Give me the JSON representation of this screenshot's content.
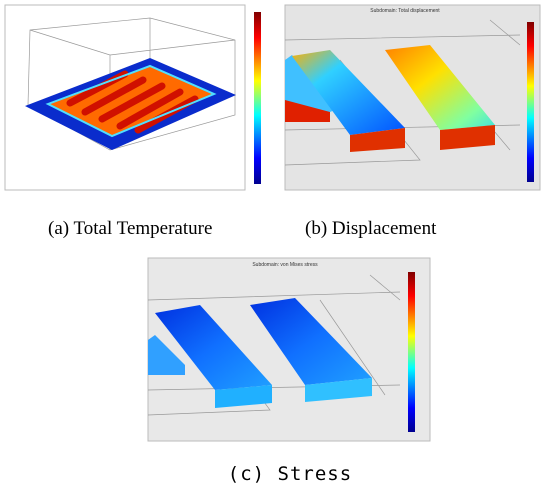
{
  "panels": [
    {
      "caption": "(a) Total Temperature"
    },
    {
      "caption": "(b) Displacement",
      "plot_title": "Subdomain: Total displacement"
    },
    {
      "caption": "(c) Stress",
      "plot_title": "Subdomain: von Mises stress"
    }
  ]
}
